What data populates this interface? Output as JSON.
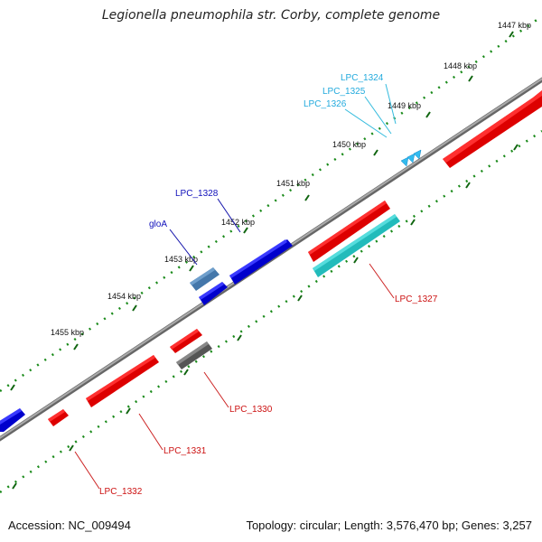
{
  "header": {
    "title": "Legionella pneumophila str. Corby, complete genome"
  },
  "footer": {
    "accession": "Accession: NC_009494",
    "summary": "Topology: circular; Length: 3,576,470 bp; Genes: 3,257"
  },
  "ruler": {
    "ticks": [
      "1447 kbp",
      "1448 kbp",
      "1449 kbp",
      "1450 kbp",
      "1451 kbp",
      "1452 kbp",
      "1453 kbp",
      "1454 kbp",
      "1455 kbp"
    ]
  },
  "genes": {
    "LPC_1324": "LPC_1324",
    "LPC_1325": "LPC_1325",
    "LPC_1326": "LPC_1326",
    "LPC_1327": "LPC_1327",
    "LPC_1328": "LPC_1328",
    "gloA": "gloA",
    "LPC_1330": "LPC_1330",
    "LPC_1331": "LPC_1331",
    "LPC_1332": "LPC_1332"
  },
  "colors": {
    "forward_strand": "#0000ee",
    "reverse_strand": "#ee0000",
    "rna_feature": "#22cccc",
    "pseudo_gene": "#555555",
    "misc_feature": "#4477aa",
    "small_feature": "#33bbee",
    "backbone": "#888888",
    "tick": "#116611"
  }
}
